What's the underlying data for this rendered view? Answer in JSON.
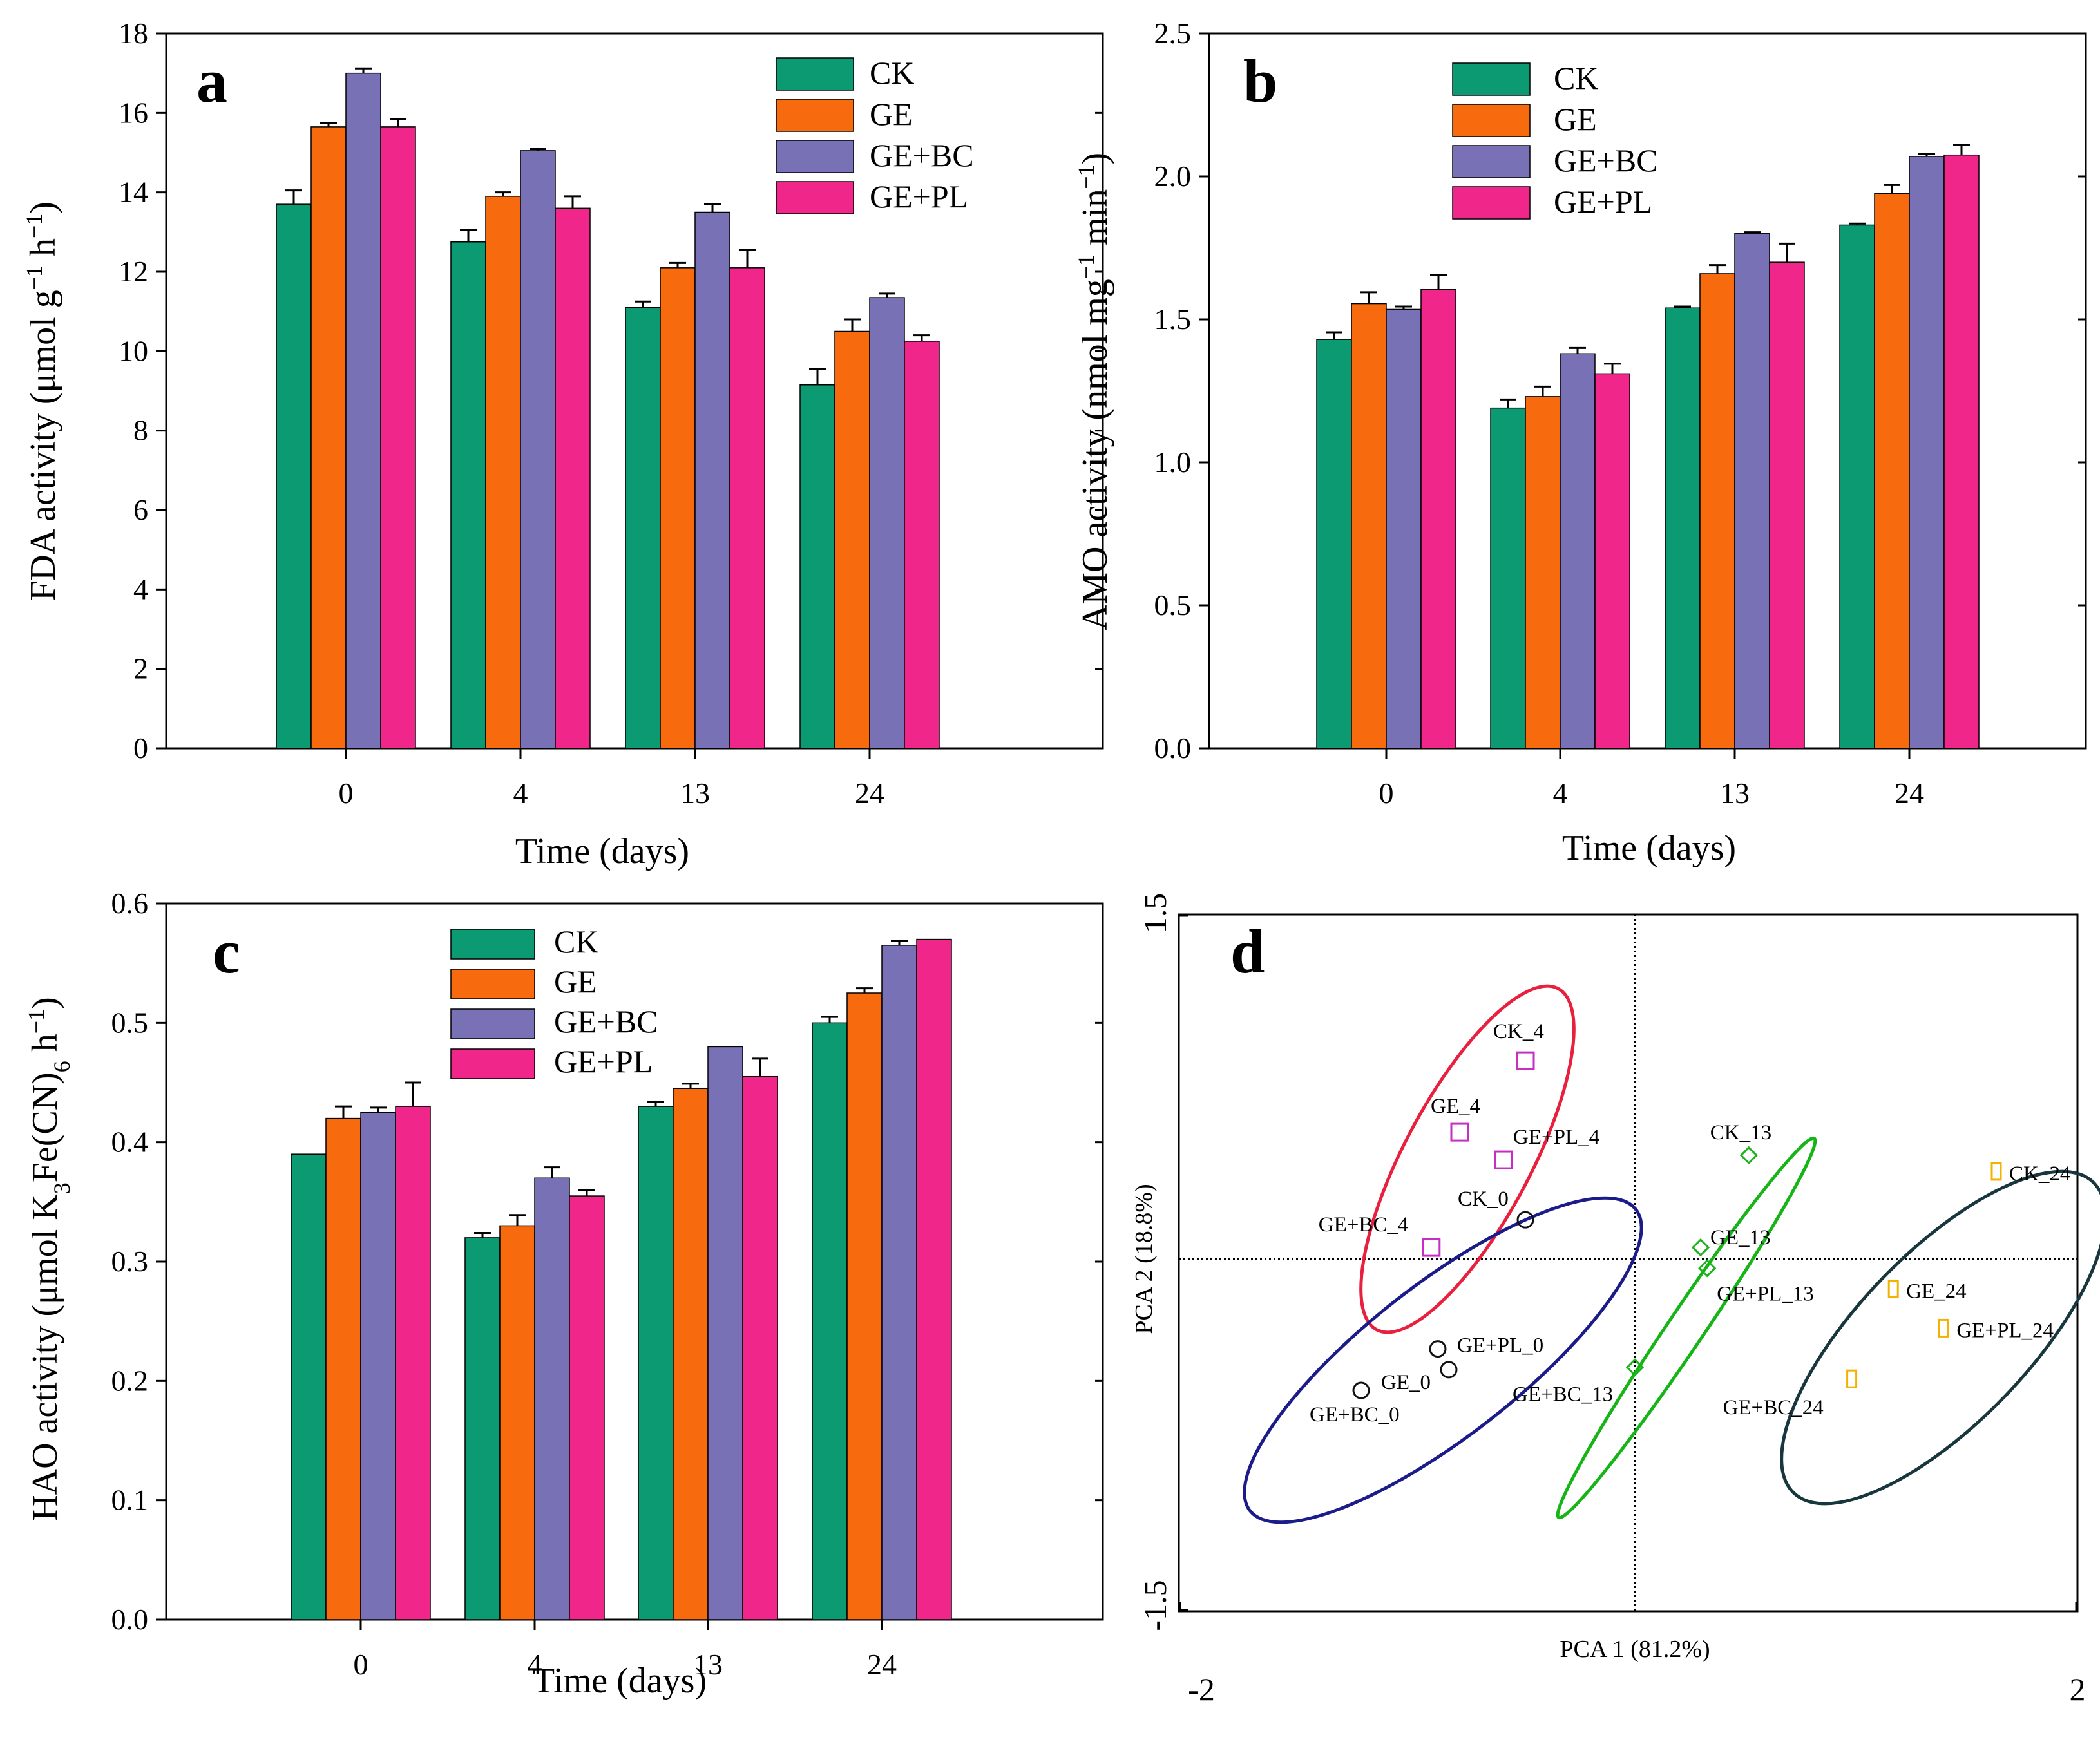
{
  "colors": {
    "CK": "#0b9a72",
    "GE": "#f76b0e",
    "GE+BC": "#7871b6",
    "GE+PL": "#f0268a"
  },
  "chart_data": [
    {
      "panel": "a",
      "type": "bar",
      "categories": [
        "0",
        "4",
        "13",
        "24"
      ],
      "xlabel": "Time (days)",
      "ylabel_main": "FDA activity (μmol g",
      "ylabel_sup1": "−1",
      "ylabel_mid": " h",
      "ylabel_sup2": "−1",
      "ylabel_end": ")",
      "ylim": [
        0,
        18
      ],
      "yticks": [
        0,
        2,
        4,
        6,
        8,
        10,
        12,
        14,
        16,
        18
      ],
      "ytick_labels": [
        "0",
        "2",
        "4",
        "6",
        "8",
        "10",
        "12",
        "14",
        "16",
        "18"
      ],
      "legend": [
        "CK",
        "GE",
        "GE+BC",
        "GE+PL"
      ],
      "series": [
        {
          "name": "CK",
          "values": [
            13.7,
            12.75,
            11.1,
            9.15
          ],
          "errors": [
            0.35,
            0.3,
            0.15,
            0.4
          ]
        },
        {
          "name": "GE",
          "values": [
            15.65,
            13.9,
            12.1,
            10.5
          ],
          "errors": [
            0.1,
            0.1,
            0.12,
            0.3
          ]
        },
        {
          "name": "GE+BC",
          "values": [
            17.0,
            15.05,
            13.5,
            11.35
          ],
          "errors": [
            0.12,
            0.04,
            0.2,
            0.1
          ]
        },
        {
          "name": "GE+PL",
          "values": [
            15.65,
            13.6,
            12.1,
            10.25
          ],
          "errors": [
            0.2,
            0.3,
            0.45,
            0.15
          ]
        }
      ]
    },
    {
      "panel": "b",
      "type": "bar",
      "categories": [
        "0",
        "4",
        "13",
        "24"
      ],
      "xlabel": "Time (days)",
      "ylabel_main": "AMO activity (nmol mg",
      "ylabel_sup1": "−1",
      "ylabel_mid": " min",
      "ylabel_sup2": "−1",
      "ylabel_end": ")",
      "ylim": [
        0,
        2.5
      ],
      "yticks": [
        0,
        0.5,
        1.0,
        1.5,
        2.0,
        2.5
      ],
      "ytick_labels": [
        "0.0",
        "0.5",
        "1.0",
        "1.5",
        "2.0",
        "2.5"
      ],
      "legend": [
        "CK",
        "GE",
        "GE+BC",
        "GE+PL"
      ],
      "series": [
        {
          "name": "CK",
          "values": [
            1.43,
            1.19,
            1.54,
            1.83
          ],
          "errors": [
            0.025,
            0.03,
            0.005,
            0.005
          ]
        },
        {
          "name": "GE",
          "values": [
            1.555,
            1.23,
            1.66,
            1.94
          ],
          "errors": [
            0.04,
            0.035,
            0.03,
            0.03
          ]
        },
        {
          "name": "GE+BC",
          "values": [
            1.535,
            1.38,
            1.8,
            2.07
          ],
          "errors": [
            0.01,
            0.02,
            0.005,
            0.01
          ]
        },
        {
          "name": "GE+PL",
          "values": [
            1.605,
            1.31,
            1.7,
            2.075
          ],
          "errors": [
            0.05,
            0.035,
            0.065,
            0.035
          ]
        }
      ]
    },
    {
      "panel": "c",
      "type": "bar",
      "categories": [
        "0",
        "4",
        "13",
        "24"
      ],
      "xlabel": "Time (days)",
      "ylabel_main": "HAO activity (μmol K",
      "ylabel_sub1": "3",
      "ylabel_mid": "Fe(CN)",
      "ylabel_sub2": "6",
      "ylabel_tail": " h",
      "ylabel_sup": "−1",
      "ylabel_end": ")",
      "ylim": [
        0,
        0.6
      ],
      "yticks": [
        0,
        0.1,
        0.2,
        0.3,
        0.4,
        0.5,
        0.6
      ],
      "ytick_labels": [
        "0.0",
        "0.1",
        "0.2",
        "0.3",
        "0.4",
        "0.5",
        "0.6"
      ],
      "legend": [
        "CK",
        "GE",
        "GE+BC",
        "GE+PL"
      ],
      "series": [
        {
          "name": "CK",
          "values": [
            0.39,
            0.32,
            0.43,
            0.5
          ],
          "errors": [
            0.0,
            0.004,
            0.004,
            0.005
          ]
        },
        {
          "name": "GE",
          "values": [
            0.42,
            0.33,
            0.445,
            0.525
          ],
          "errors": [
            0.01,
            0.009,
            0.004,
            0.004
          ]
        },
        {
          "name": "GE+BC",
          "values": [
            0.425,
            0.37,
            0.48,
            0.565
          ],
          "errors": [
            0.004,
            0.009,
            0.0,
            0.004
          ]
        },
        {
          "name": "GE+PL",
          "values": [
            0.43,
            0.355,
            0.455,
            0.57
          ],
          "errors": [
            0.02,
            0.005,
            0.015,
            0.0
          ]
        }
      ]
    },
    {
      "panel": "d",
      "type": "scatter",
      "xlabel": "PCA 1 (81.2%)",
      "ylabel": "PCA 2 (18.8%)",
      "xlim": [
        -2,
        2
      ],
      "ylim": [
        -1.5,
        1.5
      ],
      "xtick_labels": [
        "-2",
        "2"
      ],
      "ytick_labels": [
        "1.5",
        "-1.5"
      ],
      "ellipse_colors": {
        "day0": "#1b1b8a",
        "day4": "#e8203e",
        "day13": "#16b416",
        "day24": "#17363d"
      },
      "points": [
        {
          "label": "CK_4",
          "x": -0.5,
          "y": 0.86,
          "group": "day4"
        },
        {
          "label": "GE_4",
          "x": -0.8,
          "y": 0.55,
          "group": "day4"
        },
        {
          "label": "GE+PL_4",
          "x": -0.6,
          "y": 0.43,
          "group": "day4"
        },
        {
          "label": "GE+BC_4",
          "x": -0.93,
          "y": 0.05,
          "group": "day4"
        },
        {
          "label": "CK_0",
          "x": -0.5,
          "y": 0.17,
          "group": "day0"
        },
        {
          "label": "GE+PL_0",
          "x": -0.9,
          "y": -0.39,
          "group": "day0"
        },
        {
          "label": "GE_0",
          "x": -0.85,
          "y": -0.48,
          "group": "day0"
        },
        {
          "label": "GE+BC_0",
          "x": -1.25,
          "y": -0.57,
          "group": "day0"
        },
        {
          "label": "CK_13",
          "x": 0.52,
          "y": 0.45,
          "group": "day13"
        },
        {
          "label": "GE_13",
          "x": 0.3,
          "y": 0.05,
          "group": "day13"
        },
        {
          "label": "GE+PL_13",
          "x": 0.33,
          "y": -0.04,
          "group": "day13"
        },
        {
          "label": "GE+BC_13",
          "x": 0.0,
          "y": -0.47,
          "group": "day13"
        },
        {
          "label": "CK_24",
          "x": 1.65,
          "y": 0.38,
          "group": "day24"
        },
        {
          "label": "GE_24",
          "x": 1.18,
          "y": -0.13,
          "group": "day24"
        },
        {
          "label": "GE+PL_24",
          "x": 1.41,
          "y": -0.3,
          "group": "day24"
        },
        {
          "label": "GE+BC_24",
          "x": 0.99,
          "y": -0.52,
          "group": "day24"
        }
      ]
    }
  ]
}
